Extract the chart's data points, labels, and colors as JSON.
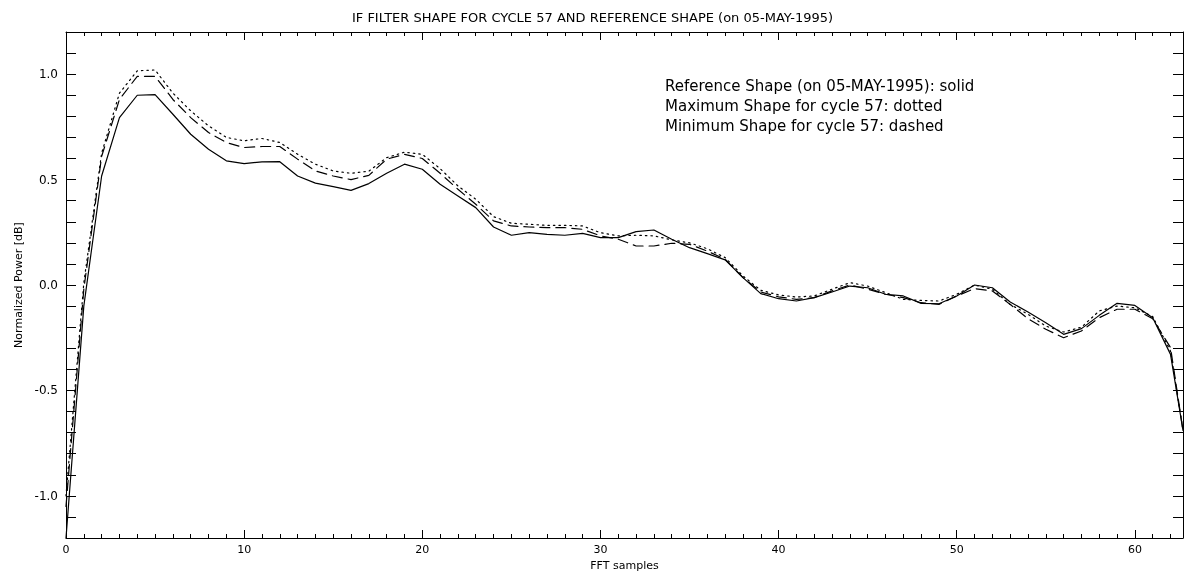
{
  "chart_data": {
    "type": "line",
    "title": "IF FILTER SHAPE FOR CYCLE 57 AND REFERENCE SHAPE (on 05-MAY-1995)",
    "xlabel": "FFT samples",
    "ylabel": "Normalized Power [dB]",
    "annotations": [
      "Reference Shape (on 05-MAY-1995): solid",
      "Maximum Shape for cycle 57: dotted",
      "Minimum Shape for cycle 57: dashed"
    ],
    "x": [
      0,
      1,
      2,
      3,
      4,
      5,
      6,
      7,
      8,
      9,
      10,
      11,
      12,
      13,
      14,
      15,
      16,
      17,
      18,
      19,
      20,
      21,
      22,
      23,
      24,
      25,
      26,
      27,
      28,
      29,
      30,
      31,
      32,
      33,
      34,
      35,
      36,
      37,
      38,
      39,
      40,
      41,
      42,
      43,
      44,
      45,
      46,
      47,
      48,
      49,
      50,
      51,
      52,
      53,
      54,
      55,
      56,
      57,
      58,
      59,
      60,
      61,
      62,
      62.7
    ],
    "series": [
      {
        "color": "#000000",
        "line_style": "solid",
        "values": [
          -1.2,
          -0.1,
          0.517,
          0.794,
          0.9,
          0.903,
          0.81,
          0.715,
          0.644,
          0.589,
          0.576,
          0.584,
          0.585,
          0.517,
          0.483,
          0.467,
          0.449,
          0.481,
          0.53,
          0.573,
          0.549,
          0.478,
          0.422,
          0.367,
          0.275,
          0.236,
          0.248,
          0.24,
          0.236,
          0.245,
          0.225,
          0.225,
          0.253,
          0.261,
          0.217,
          0.177,
          0.149,
          0.119,
          0.035,
          -0.041,
          -0.065,
          -0.076,
          -0.06,
          -0.033,
          -0.005,
          -0.013,
          -0.044,
          -0.052,
          -0.087,
          -0.089,
          -0.052,
          0.0,
          -0.013,
          -0.081,
          -0.128,
          -0.179,
          -0.234,
          -0.207,
          -0.144,
          -0.087,
          -0.097,
          -0.155,
          -0.329,
          -0.69
        ]
      },
      {
        "color": "#000000",
        "line_style": "dotted",
        "values": [
          -1.0,
          0.01,
          0.625,
          0.91,
          1.016,
          1.02,
          0.91,
          0.826,
          0.755,
          0.7,
          0.684,
          0.695,
          0.676,
          0.62,
          0.573,
          0.541,
          0.53,
          0.54,
          0.604,
          0.63,
          0.62,
          0.552,
          0.47,
          0.407,
          0.324,
          0.293,
          0.288,
          0.283,
          0.283,
          0.28,
          0.248,
          0.233,
          0.236,
          0.233,
          0.214,
          0.2,
          0.172,
          0.13,
          0.043,
          -0.025,
          -0.047,
          -0.057,
          -0.052,
          -0.02,
          0.011,
          -0.005,
          -0.036,
          -0.068,
          -0.073,
          -0.076,
          -0.044,
          0.0,
          -0.02,
          -0.092,
          -0.139,
          -0.195,
          -0.223,
          -0.2,
          -0.123,
          -0.1,
          -0.108,
          -0.15,
          -0.313,
          -0.69
        ]
      },
      {
        "color": "#000000",
        "line_style": "dashed",
        "values": [
          -1.05,
          -0.02,
          0.61,
          0.88,
          0.99,
          0.99,
          0.88,
          0.794,
          0.723,
          0.676,
          0.652,
          0.657,
          0.657,
          0.597,
          0.541,
          0.517,
          0.5,
          0.52,
          0.597,
          0.62,
          0.6,
          0.53,
          0.454,
          0.383,
          0.304,
          0.28,
          0.275,
          0.272,
          0.272,
          0.264,
          0.233,
          0.217,
          0.185,
          0.185,
          0.198,
          0.193,
          0.161,
          0.122,
          0.035,
          -0.033,
          -0.056,
          -0.068,
          -0.06,
          -0.028,
          0.0,
          -0.02,
          -0.044,
          -0.06,
          -0.084,
          -0.092,
          -0.052,
          -0.017,
          -0.028,
          -0.092,
          -0.16,
          -0.21,
          -0.25,
          -0.218,
          -0.155,
          -0.115,
          -0.115,
          -0.16,
          -0.297,
          -0.69
        ]
      }
    ],
    "xlim": [
      0,
      62.7
    ],
    "xticks": [
      0,
      10,
      20,
      30,
      40,
      50,
      60
    ],
    "ylim": [
      -1.2,
      1.2
    ],
    "yticks": [
      {
        "value": -1.1,
        "label": null
      },
      {
        "value": -1.0,
        "label": "-1.0"
      },
      {
        "value": -0.9,
        "label": null
      },
      {
        "value": -0.8,
        "label": null
      },
      {
        "value": -0.7,
        "label": null
      },
      {
        "value": -0.6,
        "label": null
      },
      -0.5,
      {
        "value": -0.4,
        "label": null
      },
      {
        "value": -0.3,
        "label": null
      },
      {
        "value": -0.2,
        "label": null
      },
      {
        "value": -0.1,
        "label": null
      },
      {
        "value": 0.0,
        "label": "0.0"
      },
      {
        "value": 0.1,
        "label": null
      },
      {
        "value": 0.2,
        "label": null
      },
      {
        "value": 0.3,
        "label": null
      },
      {
        "value": 0.4,
        "label": null
      },
      0.5,
      {
        "value": 0.6,
        "label": null
      },
      {
        "value": 0.7,
        "label": null
      },
      {
        "value": 0.8,
        "label": null
      },
      {
        "value": 0.9,
        "label": null
      },
      {
        "value": 1.0,
        "label": "1.0"
      },
      {
        "value": 1.1,
        "label": null
      }
    ],
    "grid": false,
    "marker": "none"
  }
}
